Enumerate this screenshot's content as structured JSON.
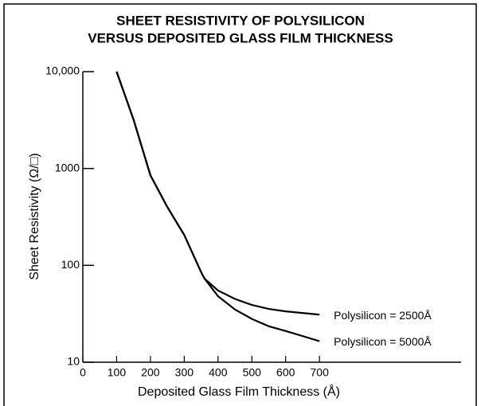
{
  "chart_data": {
    "type": "line",
    "title_lines": [
      "SHEET RESISTIVITY OF POLYSILICON",
      "VERSUS DEPOSITED GLASS FILM THICKNESS"
    ],
    "x_label": "Deposited Glass Film Thickness (Å)",
    "y_label": "Sheet Resistivity (Ω/□)",
    "log_y": true,
    "xlim": [
      0,
      1100
    ],
    "ylim": [
      10,
      10000
    ],
    "xticks": [
      0,
      100,
      200,
      300,
      400,
      500,
      600,
      700
    ],
    "yticks": [
      10,
      100,
      1000,
      {
        "value": 10000,
        "label": "10,000"
      }
    ],
    "series": [
      {
        "name": "Polysilicon = 2500Å",
        "color": "#000000",
        "x": [
          100,
          150,
          200,
          250,
          300,
          350,
          360,
          400,
          450,
          500,
          550,
          600,
          700
        ],
        "values": [
          10000,
          3200,
          850,
          400,
          206,
          85,
          73,
          55,
          45,
          39,
          35.5,
          33.5,
          31
        ]
      },
      {
        "name": "Polysilicon = 5000Å",
        "color": "#000000",
        "x": [
          100,
          150,
          200,
          250,
          300,
          350,
          360,
          400,
          450,
          500,
          550,
          600,
          700
        ],
        "values": [
          10000,
          3200,
          850,
          400,
          206,
          85,
          73,
          48,
          35,
          28,
          23.5,
          21,
          16.5
        ]
      }
    ]
  }
}
